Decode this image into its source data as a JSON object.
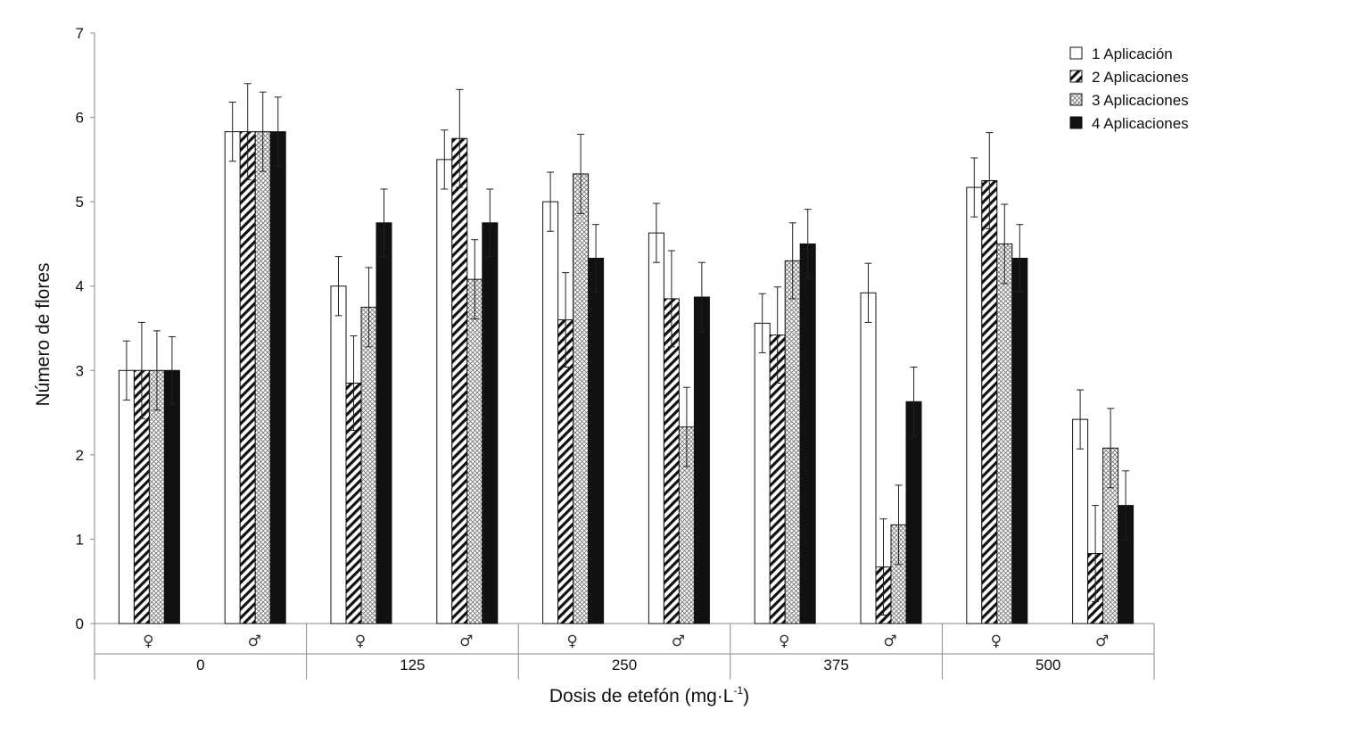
{
  "chart_data": {
    "type": "bar",
    "title": "",
    "ylabel": "Número de flores",
    "xlabel_main": "Dosis de etefón (mg·L",
    "xlabel_sup": "-1",
    "xlabel_end": ")",
    "ylim": [
      0,
      7
    ],
    "yticks": [
      "0",
      "1",
      "2",
      "3",
      "4",
      "5",
      "6",
      "7"
    ],
    "groups": [
      "0",
      "125",
      "250",
      "375",
      "500"
    ],
    "sexes": [
      "♀",
      "♂"
    ],
    "legend_position": "top-right",
    "series": [
      {
        "name": "1 Aplicación",
        "pattern": "white",
        "values": [
          3.0,
          5.83,
          4.0,
          5.5,
          5.0,
          4.63,
          3.56,
          3.92,
          5.17,
          2.42
        ],
        "errors": [
          0.35,
          0.35,
          0.35,
          0.35,
          0.35,
          0.35,
          0.35,
          0.35,
          0.35,
          0.35
        ]
      },
      {
        "name": "2 Aplicaciones",
        "pattern": "diagonal",
        "values": [
          3.0,
          5.83,
          2.85,
          5.75,
          3.6,
          3.85,
          3.42,
          0.67,
          5.25,
          0.83
        ],
        "errors": [
          0.57,
          0.57,
          0.56,
          0.58,
          0.56,
          0.57,
          0.57,
          0.57,
          0.57,
          0.57
        ]
      },
      {
        "name": "3 Aplicaciones",
        "pattern": "crosshatch",
        "values": [
          3.0,
          5.83,
          3.75,
          4.08,
          5.33,
          2.33,
          4.3,
          1.17,
          4.5,
          2.08
        ],
        "errors": [
          0.47,
          0.47,
          0.47,
          0.47,
          0.47,
          0.47,
          0.45,
          0.47,
          0.47,
          0.47
        ]
      },
      {
        "name": "4 Aplicaciones",
        "pattern": "black",
        "values": [
          3.0,
          5.83,
          4.75,
          4.75,
          4.33,
          3.87,
          4.5,
          2.63,
          4.33,
          1.4
        ],
        "errors": [
          0.4,
          0.41,
          0.4,
          0.4,
          0.4,
          0.41,
          0.41,
          0.41,
          0.4,
          0.41
        ]
      }
    ]
  }
}
